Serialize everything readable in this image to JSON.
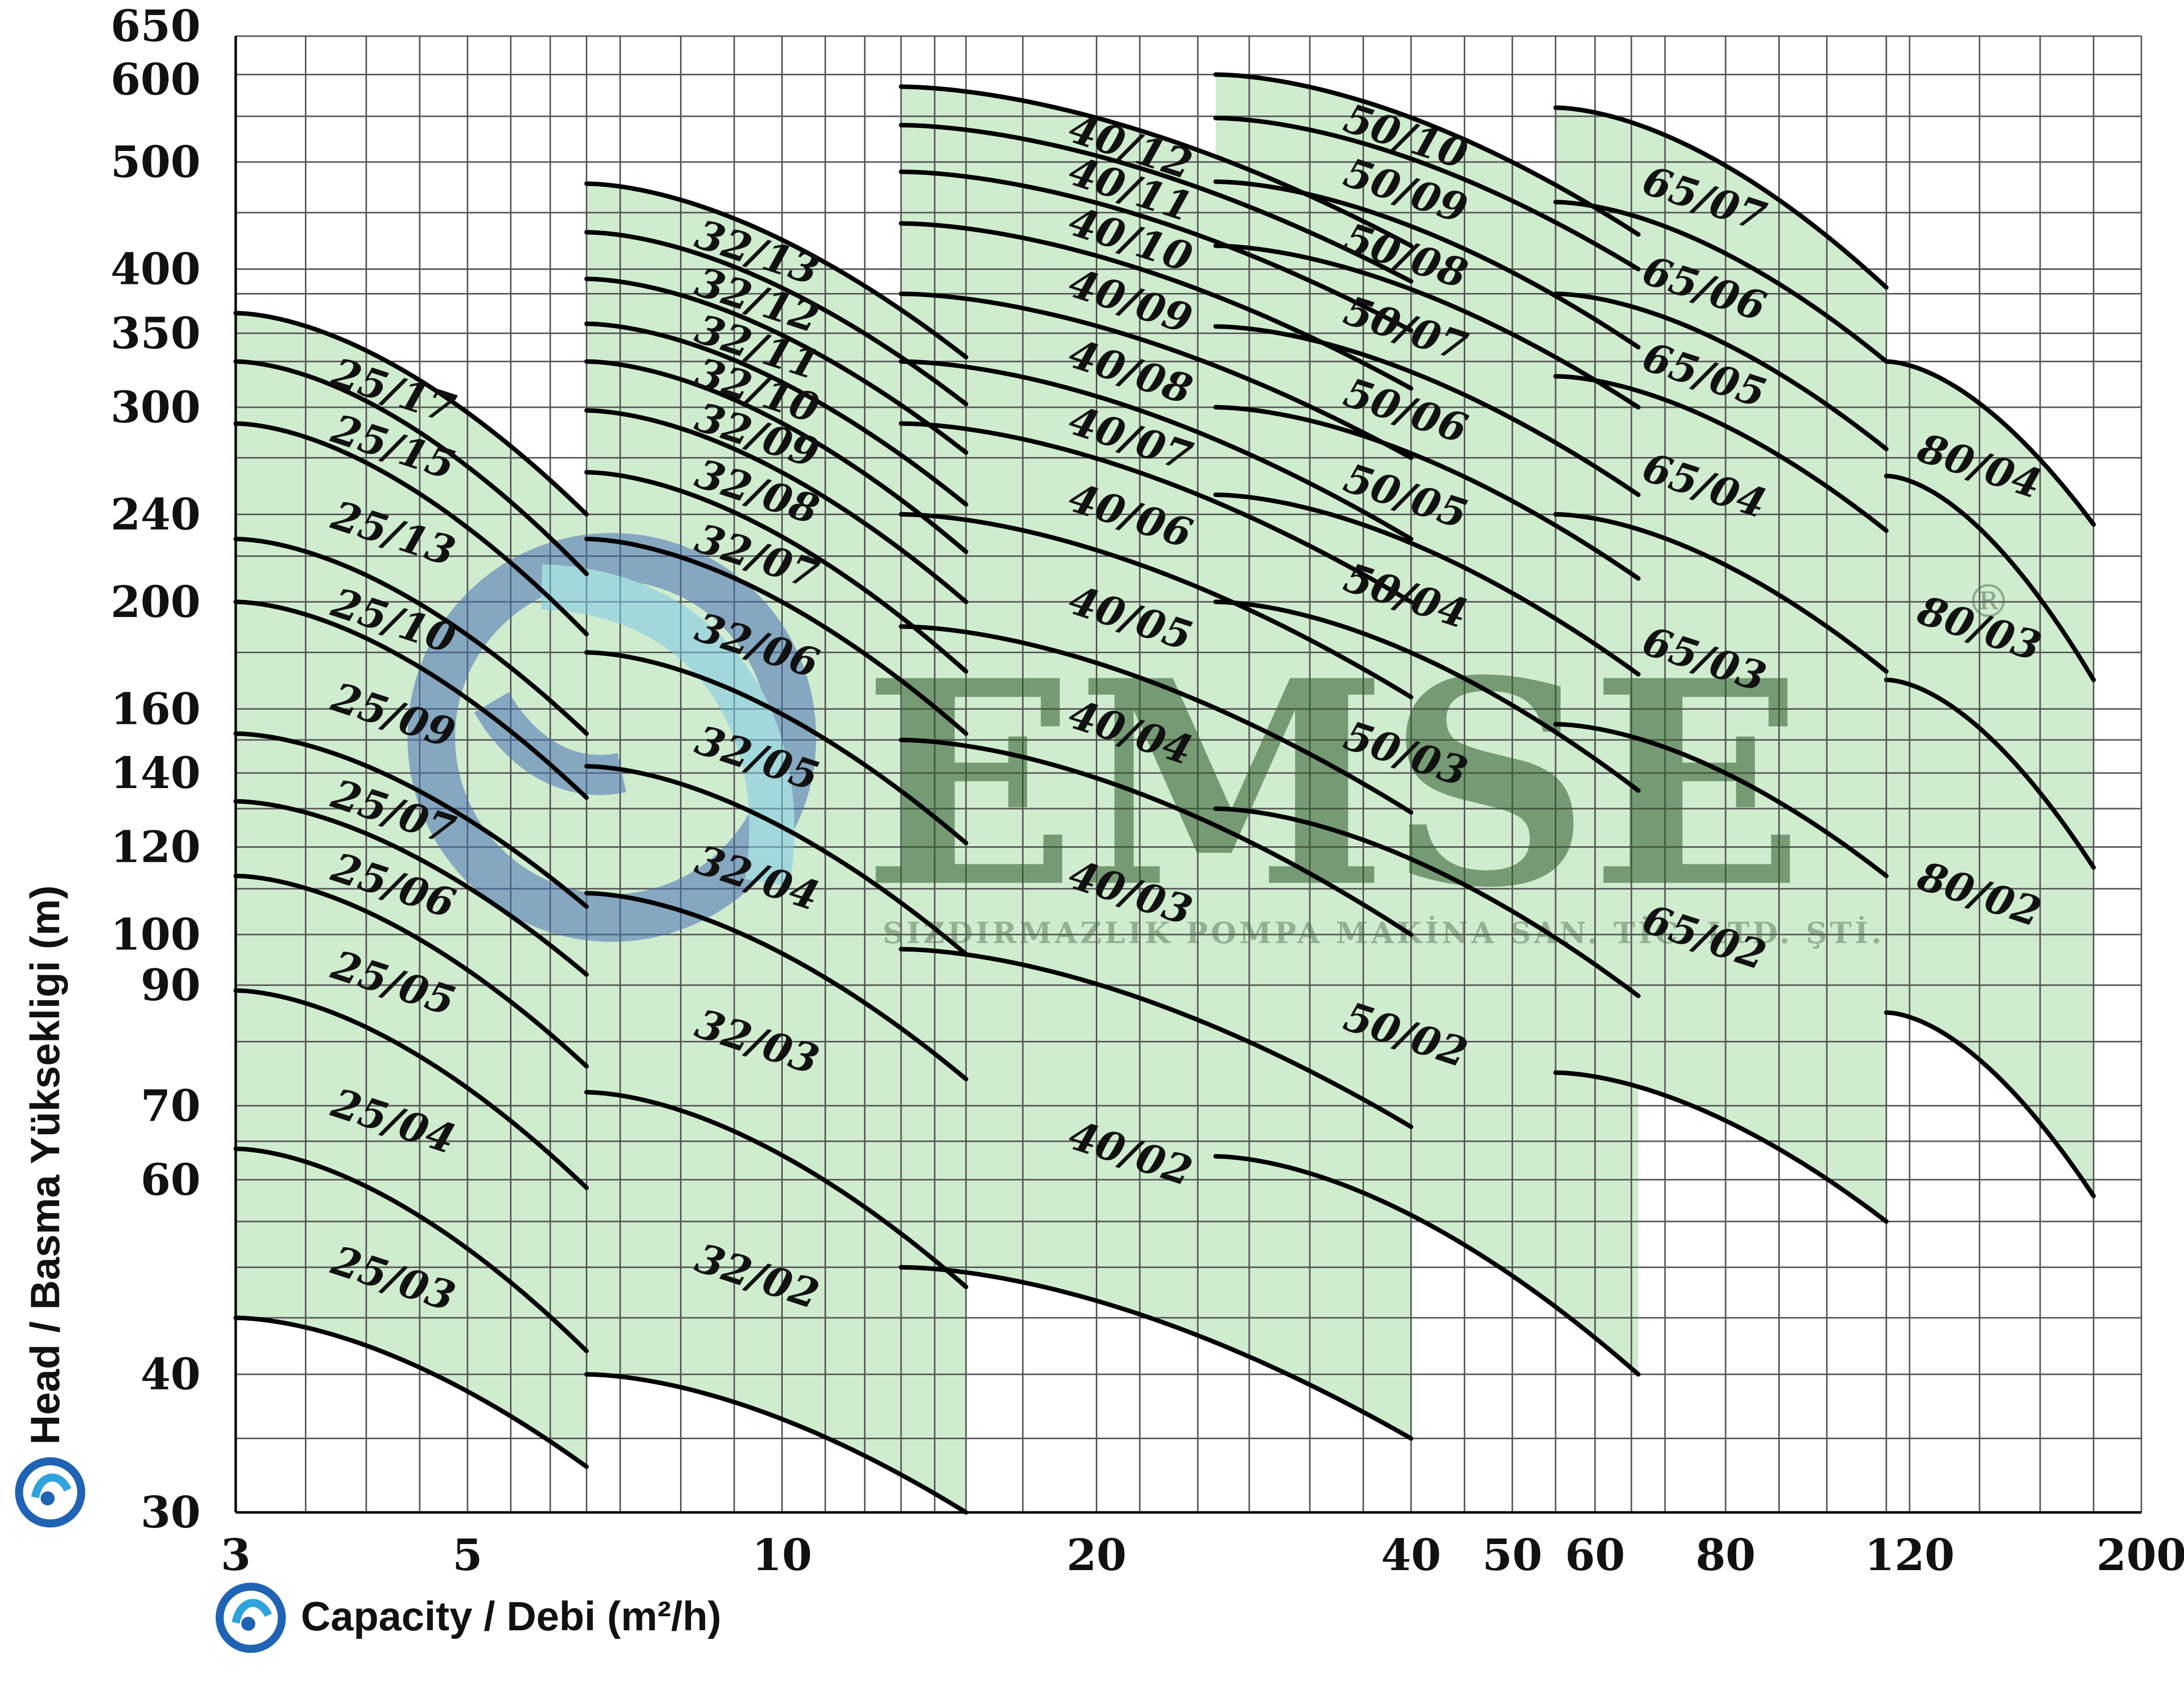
{
  "chart_data": {
    "type": "line",
    "title": "",
    "xlabel": "Capacity / Debi (m²/h)",
    "ylabel": "Head / Basma Yüksekligi (m)",
    "x_scale": "log",
    "y_scale": "log",
    "xlim": [
      3,
      200
    ],
    "ylim": [
      30,
      650
    ],
    "x_ticks": [
      3,
      5,
      10,
      20,
      40,
      50,
      60,
      80,
      120,
      200
    ],
    "y_ticks": [
      30,
      40,
      60,
      70,
      90,
      100,
      120,
      140,
      160,
      200,
      240,
      300,
      350,
      400,
      500,
      600,
      650
    ],
    "grid": true,
    "legend": "none",
    "colors": {
      "fill": "#cfeccf",
      "curve": "#000000",
      "grid": "#555555"
    },
    "families": [
      {
        "name": "25",
        "x_start": 3.0,
        "x_end": 6.5,
        "curves": [
          {
            "label": "25/17",
            "h0": 365,
            "h1": 240
          },
          {
            "label": "25/15",
            "h0": 330,
            "h1": 212
          },
          {
            "label": "25/13",
            "h0": 290,
            "h1": 187
          },
          {
            "label": "25/10",
            "h0": 228,
            "h1": 152
          },
          {
            "label": "25/09",
            "h0": 200,
            "h1": 133
          },
          {
            "label": "25/07",
            "h0": 152,
            "h1": 106
          },
          {
            "label": "25/06",
            "h0": 132,
            "h1": 92
          },
          {
            "label": "25/05",
            "h0": 113,
            "h1": 76
          },
          {
            "label": "25/04",
            "h0": 89,
            "h1": 59
          },
          {
            "label": "25/03",
            "h0": 64,
            "h1": 42
          },
          {
            "label": "",
            "h0": 45,
            "h1": 33
          }
        ]
      },
      {
        "name": "32",
        "x_start": 6.5,
        "x_end": 15.0,
        "curves": [
          {
            "label": "32/13",
            "h0": 478,
            "h1": 333
          },
          {
            "label": "32/12",
            "h0": 432,
            "h1": 302
          },
          {
            "label": "32/11",
            "h0": 392,
            "h1": 273
          },
          {
            "label": "32/10",
            "h0": 357,
            "h1": 245
          },
          {
            "label": "32/09",
            "h0": 330,
            "h1": 222
          },
          {
            "label": "32/08",
            "h0": 298,
            "h1": 200
          },
          {
            "label": "32/07",
            "h0": 262,
            "h1": 173
          },
          {
            "label": "32/06",
            "h0": 228,
            "h1": 152
          },
          {
            "label": "32/05",
            "h0": 180,
            "h1": 121
          },
          {
            "label": "32/04",
            "h0": 142,
            "h1": 96
          },
          {
            "label": "32/03",
            "h0": 109,
            "h1": 74
          },
          {
            "label": "32/02",
            "h0": 72,
            "h1": 48
          },
          {
            "label": "",
            "h0": 40,
            "h1": 30
          }
        ]
      },
      {
        "name": "40",
        "x_start": 13.0,
        "x_end": 40.0,
        "curves": [
          {
            "label": "40/12",
            "h0": 585,
            "h1": 420
          },
          {
            "label": "40/11",
            "h0": 540,
            "h1": 390
          },
          {
            "label": "40/10",
            "h0": 490,
            "h1": 352
          },
          {
            "label": "40/09",
            "h0": 440,
            "h1": 312
          },
          {
            "label": "40/08",
            "h0": 380,
            "h1": 270
          },
          {
            "label": "40/07",
            "h0": 330,
            "h1": 228
          },
          {
            "label": "40/06",
            "h0": 290,
            "h1": 200
          },
          {
            "label": "40/05",
            "h0": 240,
            "h1": 164
          },
          {
            "label": "40/04",
            "h0": 190,
            "h1": 129
          },
          {
            "label": "40/03",
            "h0": 150,
            "h1": 100
          },
          {
            "label": "40/02",
            "h0": 97,
            "h1": 67
          },
          {
            "label": "",
            "h0": 50,
            "h1": 35
          }
        ]
      },
      {
        "name": "50",
        "x_start": 26.0,
        "x_end": 66.0,
        "curves": [
          {
            "label": "50/10",
            "h0": 600,
            "h1": 430
          },
          {
            "label": "50/09",
            "h0": 548,
            "h1": 400
          },
          {
            "label": "50/08",
            "h0": 480,
            "h1": 340
          },
          {
            "label": "50/07",
            "h0": 420,
            "h1": 300
          },
          {
            "label": "50/06",
            "h0": 355,
            "h1": 250
          },
          {
            "label": "50/05",
            "h0": 300,
            "h1": 210
          },
          {
            "label": "50/04",
            "h0": 250,
            "h1": 172
          },
          {
            "label": "50/03",
            "h0": 200,
            "h1": 135
          },
          {
            "label": "50/02",
            "h0": 130,
            "h1": 88
          },
          {
            "label": "",
            "h0": 63,
            "h1": 40
          }
        ]
      },
      {
        "name": "65",
        "x_start": 55.0,
        "x_end": 114.0,
        "curves": [
          {
            "label": "65/07",
            "h0": 560,
            "h1": 385
          },
          {
            "label": "65/06",
            "h0": 460,
            "h1": 330
          },
          {
            "label": "65/05",
            "h0": 380,
            "h1": 275
          },
          {
            "label": "65/04",
            "h0": 320,
            "h1": 232
          },
          {
            "label": "65/03",
            "h0": 240,
            "h1": 173
          },
          {
            "label": "65/02",
            "h0": 155,
            "h1": 113
          },
          {
            "label": "",
            "h0": 75,
            "h1": 55
          }
        ]
      },
      {
        "name": "80",
        "x_start": 114.0,
        "x_end": 180.0,
        "curves": [
          {
            "label": "80/04",
            "h0": 330,
            "h1": 235
          },
          {
            "label": "80/03",
            "h0": 260,
            "h1": 170
          },
          {
            "label": "80/02",
            "h0": 170,
            "h1": 115
          },
          {
            "label": "",
            "h0": 85,
            "h1": 58
          }
        ]
      }
    ]
  },
  "watermark": {
    "brand": "EMSE",
    "registered": "®",
    "tagline": "SIZDIRMAZLIK POMPA MAKİNA SAN. TİC. LTD. ŞTİ."
  }
}
